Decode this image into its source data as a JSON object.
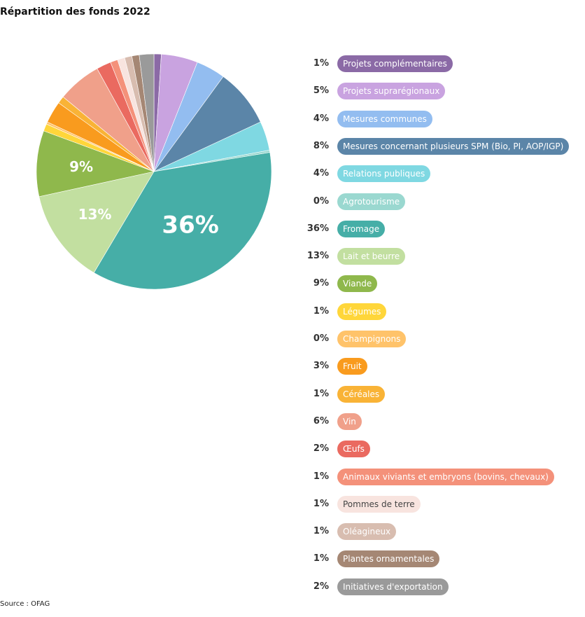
{
  "title": "Répartition des fonds 2022",
  "source": "Source : OFAG",
  "chart_data": {
    "type": "pie",
    "title": "Répartition des fonds 2022",
    "legend_position": "right",
    "slices": [
      {
        "name": "Projets complémentaires",
        "value": 1,
        "label": "1%",
        "color": "#8b6aa6"
      },
      {
        "name": "Projets suprarégionaux",
        "value": 5,
        "label": "5%",
        "color": "#c9a3e0"
      },
      {
        "name": "Mesures communes",
        "value": 4,
        "label": "4%",
        "color": "#93bdf0"
      },
      {
        "name": "Mesures concernant plusieurs SPM (Bio, PI, AOP/IGP)",
        "value": 8,
        "label": "8%",
        "color": "#5b85a8"
      },
      {
        "name": "Relations publiques",
        "value": 4,
        "label": "4%",
        "color": "#7fd8e2"
      },
      {
        "name": "Agrotourisme",
        "value": 0.3,
        "label": "0%",
        "color": "#9ad8d0"
      },
      {
        "name": "Fromage",
        "value": 36,
        "label": "36%",
        "color": "#46aea7",
        "slice_label": "36%"
      },
      {
        "name": "Lait et beurre",
        "value": 13,
        "label": "13%",
        "color": "#c2dfa0",
        "slice_label": "13%"
      },
      {
        "name": "Viande",
        "value": 9,
        "label": "9%",
        "color": "#8fb84c",
        "slice_label": "9%"
      },
      {
        "name": "Légumes",
        "value": 1,
        "label": "1%",
        "color": "#ffd63a"
      },
      {
        "name": "Champignons",
        "value": 0.3,
        "label": "0%",
        "color": "#ffc36a"
      },
      {
        "name": "Fruit",
        "value": 3,
        "label": "3%",
        "color": "#f99b1e"
      },
      {
        "name": "Céréales",
        "value": 1,
        "label": "1%",
        "color": "#f9b336"
      },
      {
        "name": "Vin",
        "value": 6,
        "label": "6%",
        "color": "#f0a08a"
      },
      {
        "name": "Œufs",
        "value": 2,
        "label": "2%",
        "color": "#ea6a60"
      },
      {
        "name": "Animaux viviants et embryons (bovins, chevaux)",
        "value": 1,
        "label": "1%",
        "color": "#f4917a"
      },
      {
        "name": "Pommes de terre",
        "value": 1,
        "label": "1%",
        "color": "#f8e4df"
      },
      {
        "name": "Oléagineux",
        "value": 1,
        "label": "1%",
        "color": "#d8bdb0"
      },
      {
        "name": "Plantes ornamentales",
        "value": 1,
        "label": "1%",
        "color": "#a58774"
      },
      {
        "name": "Initiatives d'exportation",
        "value": 2,
        "label": "2%",
        "color": "#9a9a9a"
      }
    ]
  }
}
